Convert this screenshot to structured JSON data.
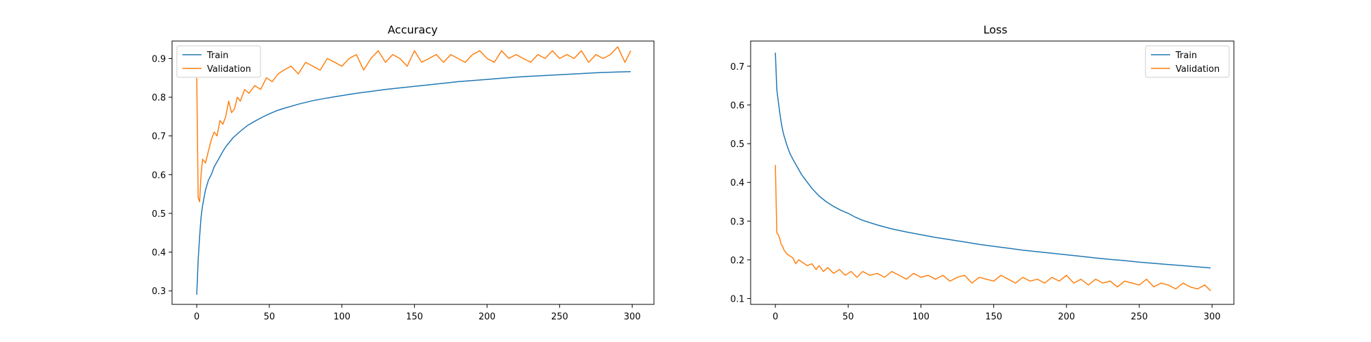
{
  "chart_data": [
    {
      "type": "line",
      "title": "Accuracy",
      "xlabel": "",
      "ylabel": "",
      "xlim": [
        -17,
        315
      ],
      "ylim": [
        0.265,
        0.945
      ],
      "xticks": [
        0,
        50,
        100,
        150,
        200,
        250,
        300
      ],
      "xtick_labels": [
        "0",
        "50",
        "100",
        "150",
        "200",
        "250",
        "300"
      ],
      "yticks": [
        0.3,
        0.4,
        0.5,
        0.6,
        0.7,
        0.8,
        0.9
      ],
      "ytick_labels": [
        "0.3",
        "0.4",
        "0.5",
        "0.6",
        "0.7",
        "0.8",
        "0.9"
      ],
      "grid": false,
      "legend": "top-left",
      "series": [
        {
          "name": "Train",
          "color": "#1f77b4",
          "x": [
            0,
            1,
            2,
            3,
            4,
            5,
            6,
            8,
            10,
            12,
            15,
            18,
            20,
            25,
            30,
            35,
            40,
            45,
            50,
            55,
            60,
            70,
            80,
            90,
            100,
            110,
            120,
            130,
            140,
            150,
            160,
            170,
            180,
            190,
            200,
            210,
            220,
            230,
            240,
            250,
            260,
            270,
            280,
            290,
            299
          ],
          "y": [
            0.29,
            0.38,
            0.44,
            0.49,
            0.52,
            0.54,
            0.56,
            0.585,
            0.6,
            0.62,
            0.64,
            0.66,
            0.672,
            0.695,
            0.712,
            0.727,
            0.738,
            0.748,
            0.757,
            0.765,
            0.771,
            0.782,
            0.791,
            0.798,
            0.804,
            0.81,
            0.815,
            0.82,
            0.824,
            0.828,
            0.832,
            0.836,
            0.84,
            0.843,
            0.846,
            0.849,
            0.852,
            0.854,
            0.856,
            0.858,
            0.86,
            0.862,
            0.864,
            0.865,
            0.866
          ]
        },
        {
          "name": "Validation",
          "color": "#ff7f0e",
          "x": [
            0,
            1,
            2,
            3,
            4,
            6,
            8,
            10,
            12,
            14,
            16,
            18,
            20,
            22,
            24,
            26,
            28,
            30,
            33,
            36,
            40,
            44,
            48,
            52,
            56,
            60,
            65,
            70,
            75,
            80,
            85,
            90,
            95,
            100,
            105,
            110,
            115,
            120,
            125,
            130,
            135,
            140,
            145,
            150,
            155,
            160,
            165,
            170,
            175,
            180,
            185,
            190,
            195,
            200,
            205,
            210,
            215,
            220,
            225,
            230,
            235,
            240,
            245,
            250,
            255,
            260,
            265,
            270,
            275,
            280,
            285,
            290,
            295,
            299
          ],
          "y": [
            0.85,
            0.54,
            0.53,
            0.6,
            0.64,
            0.63,
            0.66,
            0.69,
            0.71,
            0.7,
            0.74,
            0.73,
            0.75,
            0.79,
            0.76,
            0.77,
            0.8,
            0.79,
            0.82,
            0.81,
            0.83,
            0.82,
            0.85,
            0.84,
            0.86,
            0.87,
            0.88,
            0.86,
            0.89,
            0.88,
            0.87,
            0.9,
            0.89,
            0.88,
            0.9,
            0.91,
            0.87,
            0.9,
            0.92,
            0.89,
            0.91,
            0.9,
            0.88,
            0.92,
            0.89,
            0.9,
            0.91,
            0.89,
            0.91,
            0.9,
            0.89,
            0.91,
            0.92,
            0.9,
            0.89,
            0.92,
            0.9,
            0.91,
            0.9,
            0.89,
            0.91,
            0.9,
            0.92,
            0.9,
            0.91,
            0.9,
            0.92,
            0.89,
            0.91,
            0.9,
            0.91,
            0.93,
            0.89,
            0.92
          ]
        }
      ]
    },
    {
      "type": "line",
      "title": "Loss",
      "xlabel": "",
      "ylabel": "",
      "xlim": [
        -17,
        315
      ],
      "ylim": [
        0.085,
        0.765
      ],
      "xticks": [
        0,
        50,
        100,
        150,
        200,
        250,
        300
      ],
      "xtick_labels": [
        "0",
        "50",
        "100",
        "150",
        "200",
        "250",
        "300"
      ],
      "yticks": [
        0.1,
        0.2,
        0.3,
        0.4,
        0.5,
        0.6,
        0.7
      ],
      "ytick_labels": [
        "0.1",
        "0.2",
        "0.3",
        "0.4",
        "0.5",
        "0.6",
        "0.7"
      ],
      "grid": false,
      "legend": "top-right",
      "series": [
        {
          "name": "Train",
          "color": "#1f77b4",
          "x": [
            0,
            1,
            2,
            3,
            4,
            5,
            6,
            8,
            10,
            12,
            15,
            18,
            20,
            25,
            30,
            35,
            40,
            45,
            50,
            55,
            60,
            70,
            80,
            90,
            100,
            110,
            120,
            130,
            140,
            150,
            160,
            170,
            180,
            190,
            200,
            210,
            220,
            230,
            240,
            250,
            260,
            270,
            280,
            290,
            299
          ],
          "y": [
            0.735,
            0.64,
            0.61,
            0.58,
            0.555,
            0.535,
            0.52,
            0.495,
            0.475,
            0.46,
            0.44,
            0.42,
            0.41,
            0.385,
            0.365,
            0.35,
            0.338,
            0.328,
            0.32,
            0.31,
            0.302,
            0.29,
            0.28,
            0.272,
            0.265,
            0.258,
            0.252,
            0.246,
            0.24,
            0.235,
            0.23,
            0.225,
            0.221,
            0.217,
            0.213,
            0.209,
            0.205,
            0.201,
            0.198,
            0.194,
            0.191,
            0.188,
            0.185,
            0.182,
            0.179
          ]
        },
        {
          "name": "Validation",
          "color": "#ff7f0e",
          "x": [
            0,
            1,
            2,
            3,
            4,
            5,
            6,
            8,
            10,
            12,
            14,
            16,
            18,
            20,
            22,
            25,
            28,
            30,
            33,
            36,
            40,
            44,
            48,
            52,
            56,
            60,
            65,
            70,
            75,
            80,
            85,
            90,
            95,
            100,
            105,
            110,
            115,
            120,
            125,
            130,
            135,
            140,
            145,
            150,
            155,
            160,
            165,
            170,
            175,
            180,
            185,
            190,
            195,
            200,
            205,
            210,
            215,
            220,
            225,
            230,
            235,
            240,
            245,
            250,
            255,
            260,
            265,
            270,
            275,
            280,
            285,
            290,
            295,
            299
          ],
          "y": [
            0.445,
            0.27,
            0.265,
            0.255,
            0.24,
            0.235,
            0.225,
            0.215,
            0.21,
            0.205,
            0.19,
            0.2,
            0.195,
            0.19,
            0.185,
            0.19,
            0.175,
            0.185,
            0.17,
            0.18,
            0.165,
            0.175,
            0.16,
            0.17,
            0.155,
            0.17,
            0.16,
            0.165,
            0.155,
            0.17,
            0.16,
            0.15,
            0.165,
            0.155,
            0.16,
            0.15,
            0.16,
            0.145,
            0.155,
            0.16,
            0.14,
            0.155,
            0.15,
            0.145,
            0.16,
            0.15,
            0.14,
            0.155,
            0.145,
            0.15,
            0.14,
            0.155,
            0.145,
            0.16,
            0.14,
            0.15,
            0.135,
            0.15,
            0.14,
            0.145,
            0.13,
            0.145,
            0.14,
            0.135,
            0.15,
            0.13,
            0.14,
            0.135,
            0.125,
            0.14,
            0.13,
            0.125,
            0.135,
            0.12
          ]
        }
      ]
    }
  ]
}
